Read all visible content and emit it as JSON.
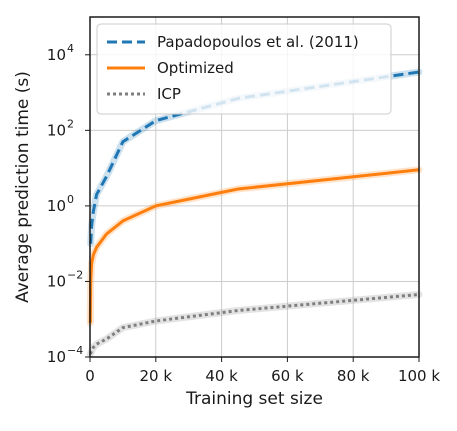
{
  "chart_data": {
    "type": "line",
    "title": "",
    "xlabel": "Training set size",
    "ylabel": "Average prediction time (s)",
    "xlim": [
      0,
      100000
    ],
    "ylim": [
      0.0001,
      100000
    ],
    "yscale": "log",
    "grid": true,
    "legend_position": "top-left",
    "x_ticks": [
      {
        "value": 0,
        "label": "0"
      },
      {
        "value": 20000,
        "label": "20 k"
      },
      {
        "value": 40000,
        "label": "40 k"
      },
      {
        "value": 60000,
        "label": "60 k"
      },
      {
        "value": 80000,
        "label": "80 k"
      },
      {
        "value": 100000,
        "label": "100 k"
      }
    ],
    "y_ticks": [
      {
        "value": 0.0001,
        "base": "10",
        "exp": "−4"
      },
      {
        "value": 0.01,
        "base": "10",
        "exp": "−2"
      },
      {
        "value": 1,
        "base": "10",
        "exp": "0"
      },
      {
        "value": 100,
        "base": "10",
        "exp": "2"
      },
      {
        "value": 10000,
        "base": "10",
        "exp": "4"
      }
    ],
    "series": [
      {
        "name": "Papadopoulos et al. (2011)",
        "color": "#1f77b4",
        "style": "dashed",
        "x": [
          200,
          500,
          1000,
          2000,
          5000,
          10000,
          20000,
          45000,
          100000
        ],
        "y": [
          0.1,
          0.3,
          0.7,
          2,
          6,
          50,
          180,
          700,
          3500
        ]
      },
      {
        "name": "Optimized",
        "color": "#ff7f0e",
        "style": "solid",
        "x": [
          100,
          200,
          500,
          1000,
          2000,
          5000,
          10000,
          20000,
          45000,
          100000
        ],
        "y": [
          0.0008,
          0.01,
          0.03,
          0.05,
          0.08,
          0.18,
          0.4,
          1,
          2.8,
          9
        ]
      },
      {
        "name": "ICP",
        "color": "#7f7f7f",
        "style": "dotted",
        "x": [
          100,
          1000,
          2000,
          5000,
          10000,
          20000,
          45000,
          100000
        ],
        "y": [
          0.00012,
          0.00018,
          0.00022,
          0.0003,
          0.0006,
          0.0009,
          0.0017,
          0.0045
        ]
      }
    ]
  }
}
